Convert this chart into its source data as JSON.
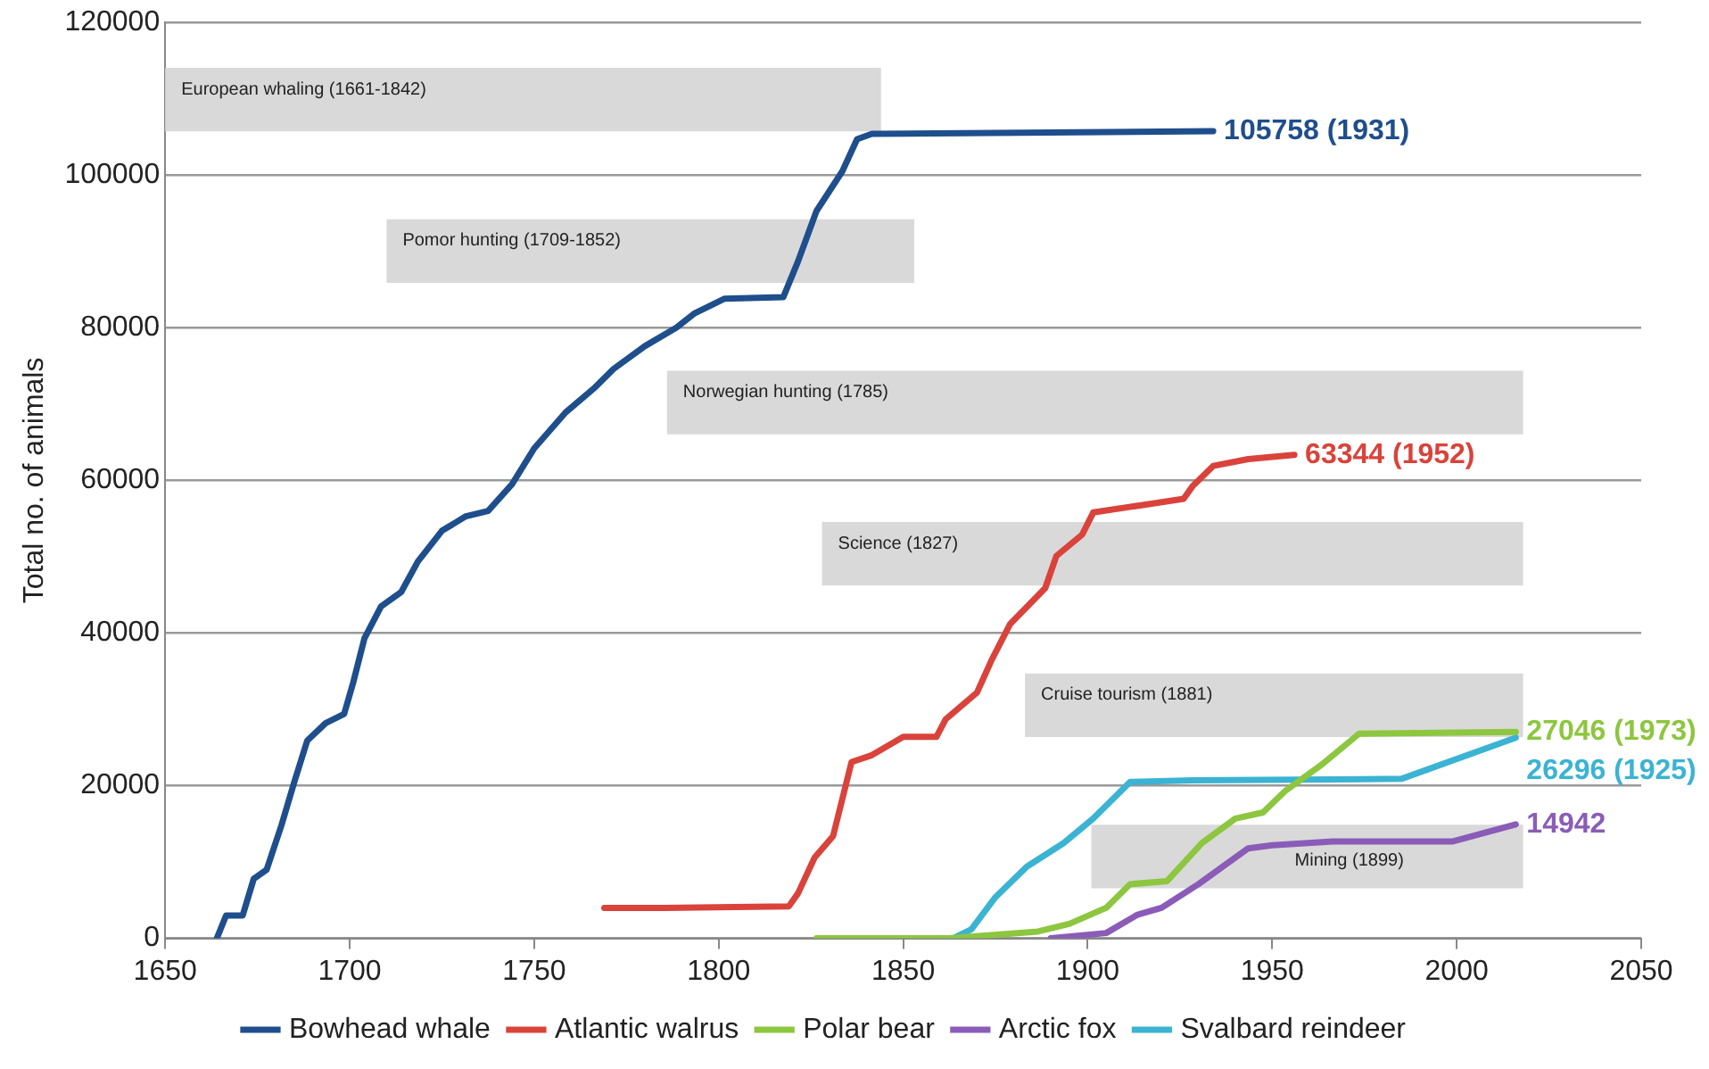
{
  "chart_data": {
    "type": "line",
    "ylabel": "Total no. of animals",
    "xlim": [
      1650,
      2050
    ],
    "xticks": [
      1650,
      1700,
      1750,
      1800,
      1850,
      1900,
      1950,
      2000,
      2050
    ],
    "ylim": [
      0,
      120000
    ],
    "yticks": [
      0,
      20000,
      40000,
      60000,
      80000,
      100000,
      120000
    ],
    "grid": "y",
    "legend": "bottom",
    "marker": "none",
    "line_style": "solid",
    "series": [
      {
        "name": "Bowhead whale",
        "color": "#1f4e8c",
        "x": [
          1664,
          1666.5,
          1671,
          1674,
          1677.5,
          1681.5,
          1685,
          1688.5,
          1693.5,
          1698.5,
          1701,
          1704,
          1708.5,
          1714,
          1718.5,
          1725,
          1731.5,
          1737.5,
          1744,
          1750,
          1758.5,
          1766.5,
          1771.5,
          1780,
          1788.5,
          1793.5,
          1801.5,
          1817.5,
          1821.5,
          1826.5,
          1833.5,
          1837.5,
          1841.5,
          1934
        ],
        "values": [
          0,
          3000,
          3000,
          7800,
          9000,
          14800,
          20500,
          25900,
          28200,
          29400,
          33600,
          39300,
          43500,
          45400,
          49400,
          53400,
          55300,
          56000,
          59500,
          64200,
          68900,
          72200,
          74600,
          77600,
          80000,
          81900,
          83800,
          84000,
          88700,
          95300,
          100500,
          104700,
          105400,
          105758
        ]
      },
      {
        "name": "Atlantic walrus",
        "color": "#d9433b",
        "x": [
          1769,
          1785,
          1819,
          1821.5,
          1826,
          1831,
          1836,
          1841.5,
          1850,
          1859,
          1861.5,
          1870,
          1874,
          1879,
          1888.5,
          1891.5,
          1898.5,
          1901.5,
          1916.5,
          1926,
          1928.5,
          1934,
          1943.5,
          1956
        ],
        "values": [
          4000,
          4000,
          4200,
          5900,
          10600,
          13400,
          23100,
          24000,
          26400,
          26400,
          28700,
          32200,
          36500,
          41200,
          45900,
          50100,
          52900,
          55800,
          56900,
          57600,
          59300,
          61900,
          62800,
          63344
        ]
      },
      {
        "name": "Polar bear",
        "color": "#8dc63f",
        "x": [
          1826.5,
          1862.5,
          1886.5,
          1895,
          1905,
          1911.5,
          1921.5,
          1931,
          1940,
          1947.5,
          1953.5,
          1963.5,
          1973.5,
          2016
        ],
        "values": [
          0,
          0,
          900,
          1900,
          4000,
          7100,
          7500,
          12500,
          15700,
          16500,
          19300,
          22800,
          26800,
          27046
        ]
      },
      {
        "name": "Arctic fox",
        "color": "#8a5cb8",
        "x": [
          1890,
          1905,
          1913.5,
          1920,
          1930,
          1943.5,
          1950,
          1966.5,
          1999,
          2016
        ],
        "values": [
          0,
          700,
          3100,
          4000,
          7100,
          11800,
          12200,
          12700,
          12700,
          14942
        ]
      },
      {
        "name": "Svalbard reindeer",
        "color": "#3bb3d3",
        "x": [
          1863.5,
          1868.5,
          1875,
          1883.5,
          1893.5,
          1901.5,
          1911.5,
          1928.5,
          1985,
          2016
        ],
        "values": [
          0,
          1200,
          5400,
          9400,
          12500,
          15700,
          20500,
          20700,
          20900,
          26296
        ]
      }
    ],
    "bands": [
      {
        "axis": "x",
        "from": 1650,
        "to": 1844,
        "label": "European whaling (1661-1842)",
        "color": "#d9d9d9"
      },
      {
        "axis": "x",
        "from": 1710,
        "to": 1853,
        "label": "Pomor hunting (1709-1852)",
        "color": "#d9d9d9"
      },
      {
        "axis": "x",
        "from": 1786,
        "to": 2018,
        "label": "Norwegian hunting (1785)",
        "color": "#d9d9d9"
      },
      {
        "axis": "x",
        "from": 1828,
        "to": 2018,
        "label": "Science (1827)",
        "color": "#d9d9d9"
      },
      {
        "axis": "x",
        "from": 1883,
        "to": 2018,
        "label": "Cruise tourism (1881)",
        "color": "#d9d9d9"
      },
      {
        "axis": "x",
        "from": 1901,
        "to": 2018,
        "label": "Mining (1899)",
        "color": "#d9d9d9"
      }
    ],
    "annotations": [
      {
        "text": "105758 (1931)",
        "x": 1934,
        "y": 105758
      },
      {
        "text": "63344 (1952)",
        "x": 1956,
        "y": 63344
      },
      {
        "text": "27046 (1973)",
        "x": 2016,
        "y": 27046
      },
      {
        "text": "14942",
        "x": 2016,
        "y": 14942
      },
      {
        "text": "26296 (1925)",
        "x": 2016,
        "y": 26296
      }
    ]
  }
}
